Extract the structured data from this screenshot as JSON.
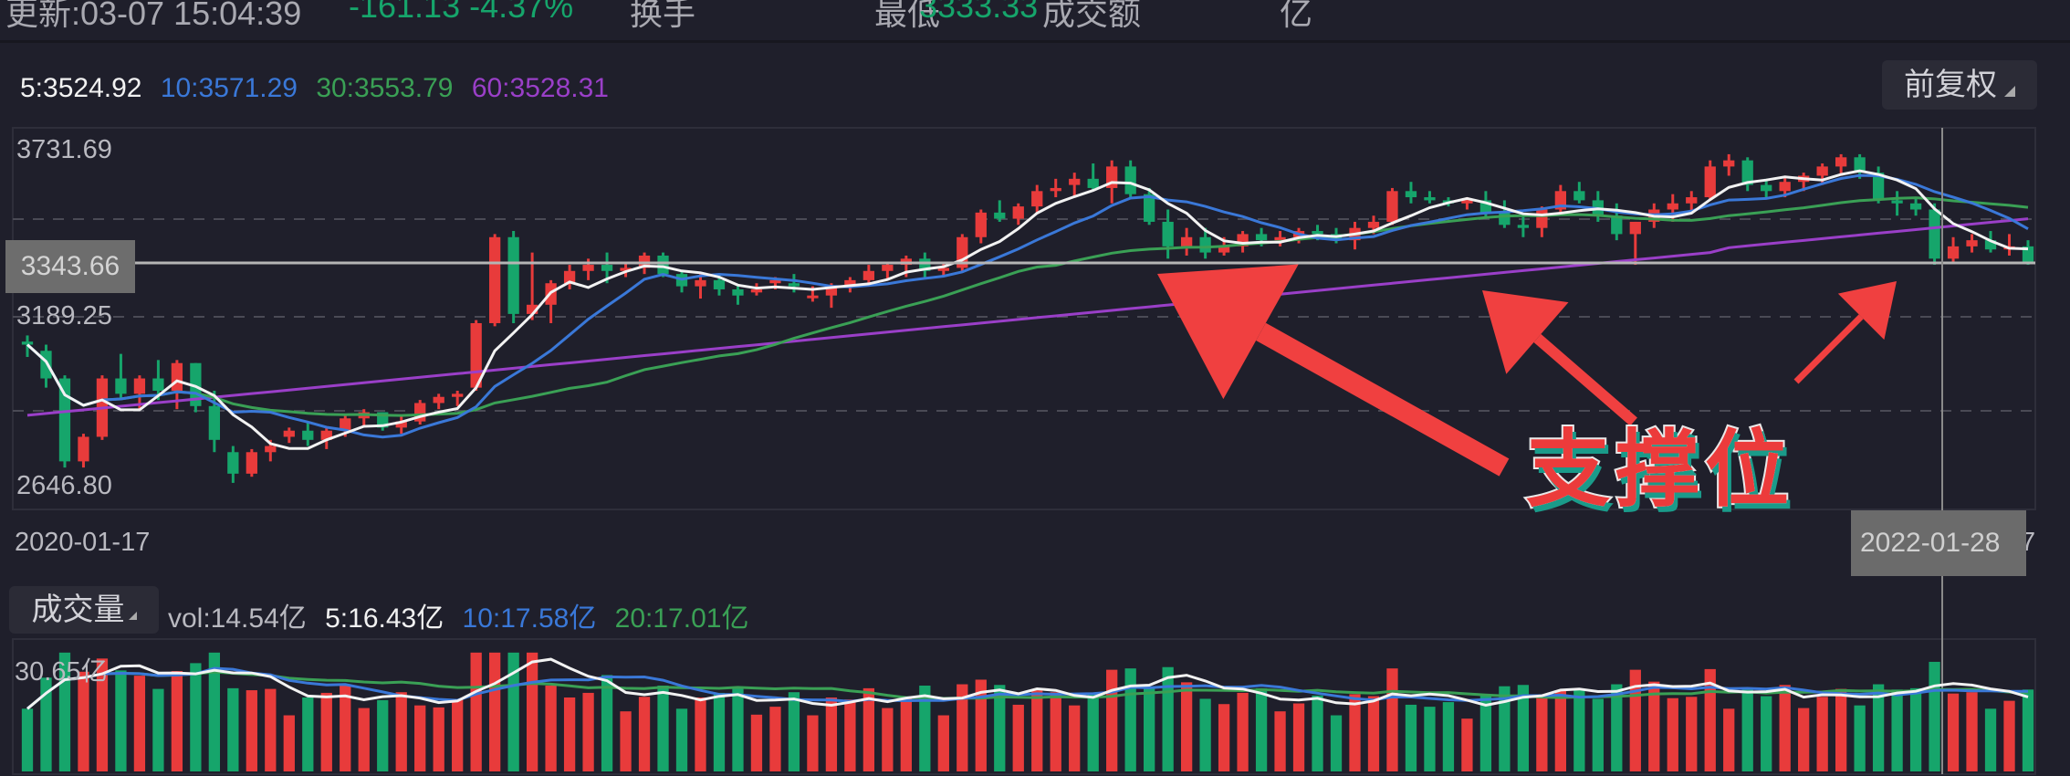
{
  "header": {
    "update_time": "更新:03-07 15:04:39",
    "change": "-161.13 -4.37%",
    "turnover_label": "换手",
    "low_label": "最低",
    "low_value": "3333.33",
    "amount_label": "成交额",
    "amount_value": "亿"
  },
  "ma_legend": {
    "ma5": "5:3524.92",
    "ma10": "10:3571.29",
    "ma30": "30:3553.79",
    "ma60": "60:3528.31"
  },
  "adjust_button": {
    "label": "前复权"
  },
  "price_axis": {
    "high": "3731.69",
    "crosshair": "3343.66",
    "mid": "3189.25",
    "low": "2646.80"
  },
  "date_axis": {
    "start": "2020-01-17",
    "crosshair": "2022-01-28",
    "end_partial": "7"
  },
  "volume": {
    "button_label": "成交量",
    "vol": "vol:14.54亿",
    "ma5": "5:16.43亿",
    "ma10": "10:17.58亿",
    "ma20": "20:17.01亿",
    "axis_max": "30.65亿"
  },
  "annotation": {
    "text": "支撑位"
  },
  "colors": {
    "background": "#1f1f2b",
    "up": "#e83b3b",
    "down": "#16a56b",
    "ma5": "#f2f2f2",
    "ma10": "#3a78d8",
    "ma30": "#3aa055",
    "ma60": "#9a3fc8",
    "arrow": "#f04040"
  },
  "chart_data": [
    {
      "type": "candlestick",
      "title": "K线 (前复权)",
      "xlabel": "",
      "ylabel": "",
      "x_range": [
        "2020-01-17",
        "2022-01-28"
      ],
      "ylim": [
        2646.8,
        3731.69
      ],
      "yticks": [
        2646.8,
        3189.25,
        3731.69
      ],
      "crosshair": {
        "price": 3343.66,
        "date": "2022-01-28"
      },
      "grid": "dashed horizontal",
      "series": [
        {
          "name": "MA5",
          "last": 3524.92
        },
        {
          "name": "MA10",
          "last": 3571.29
        },
        {
          "name": "MA30",
          "last": 3553.79
        },
        {
          "name": "MA60",
          "last": 3528.31
        }
      ],
      "candles": [
        [
          3110,
          3130,
          3060,
          3100
        ],
        [
          3080,
          3100,
          2960,
          2990
        ],
        [
          2990,
          3000,
          2700,
          2720
        ],
        [
          2720,
          2810,
          2700,
          2800
        ],
        [
          2800,
          3000,
          2790,
          2990
        ],
        [
          2990,
          3070,
          2920,
          2940
        ],
        [
          2940,
          3000,
          2890,
          2990
        ],
        [
          2990,
          3050,
          2920,
          2950
        ],
        [
          2950,
          3050,
          2890,
          3040
        ],
        [
          3040,
          3040,
          2880,
          2900
        ],
        [
          2900,
          2950,
          2750,
          2790
        ],
        [
          2750,
          2770,
          2650,
          2680
        ],
        [
          2680,
          2760,
          2670,
          2750
        ],
        [
          2750,
          2790,
          2720,
          2770
        ],
        [
          2800,
          2830,
          2780,
          2820
        ],
        [
          2820,
          2850,
          2770,
          2790
        ],
        [
          2790,
          2830,
          2760,
          2820
        ],
        [
          2820,
          2870,
          2800,
          2860
        ],
        [
          2860,
          2890,
          2830,
          2880
        ],
        [
          2880,
          2880,
          2820,
          2830
        ],
        [
          2830,
          2870,
          2810,
          2850
        ],
        [
          2850,
          2920,
          2840,
          2910
        ],
        [
          2910,
          2940,
          2890,
          2930
        ],
        [
          2930,
          2950,
          2900,
          2940
        ],
        [
          2960,
          3180,
          2950,
          3170
        ],
        [
          3170,
          3460,
          3160,
          3450
        ],
        [
          3450,
          3470,
          3170,
          3200
        ],
        [
          3200,
          3400,
          3180,
          3230
        ],
        [
          3230,
          3310,
          3170,
          3300
        ],
        [
          3300,
          3360,
          3280,
          3340
        ],
        [
          3340,
          3380,
          3310,
          3360
        ],
        [
          3360,
          3400,
          3300,
          3340
        ],
        [
          3340,
          3370,
          3320,
          3350
        ],
        [
          3350,
          3400,
          3330,
          3390
        ],
        [
          3390,
          3400,
          3320,
          3330
        ],
        [
          3330,
          3340,
          3270,
          3290
        ],
        [
          3290,
          3330,
          3250,
          3310
        ],
        [
          3310,
          3330,
          3260,
          3280
        ],
        [
          3280,
          3290,
          3230,
          3260
        ],
        [
          3270,
          3300,
          3260,
          3280
        ],
        [
          3300,
          3320,
          3280,
          3310
        ],
        [
          3300,
          3330,
          3270,
          3290
        ],
        [
          3260,
          3290,
          3240,
          3260
        ],
        [
          3260,
          3300,
          3220,
          3290
        ],
        [
          3290,
          3320,
          3270,
          3310
        ],
        [
          3310,
          3360,
          3300,
          3340
        ],
        [
          3340,
          3370,
          3310,
          3360
        ],
        [
          3360,
          3390,
          3320,
          3380
        ],
        [
          3380,
          3400,
          3320,
          3340
        ],
        [
          3340,
          3370,
          3320,
          3350
        ],
        [
          3350,
          3460,
          3340,
          3450
        ],
        [
          3450,
          3540,
          3430,
          3530
        ],
        [
          3530,
          3570,
          3500,
          3510
        ],
        [
          3510,
          3560,
          3490,
          3550
        ],
        [
          3550,
          3620,
          3530,
          3600
        ],
        [
          3600,
          3640,
          3580,
          3610
        ],
        [
          3620,
          3660,
          3580,
          3640
        ],
        [
          3640,
          3690,
          3600,
          3610
        ],
        [
          3610,
          3700,
          3560,
          3680
        ],
        [
          3680,
          3700,
          3580,
          3590
        ],
        [
          3590,
          3610,
          3490,
          3500
        ],
        [
          3500,
          3540,
          3380,
          3420
        ],
        [
          3420,
          3480,
          3390,
          3450
        ],
        [
          3450,
          3480,
          3380,
          3400
        ],
        [
          3400,
          3450,
          3390,
          3420
        ],
        [
          3420,
          3470,
          3400,
          3460
        ],
        [
          3460,
          3480,
          3420,
          3440
        ],
        [
          3440,
          3470,
          3420,
          3450
        ],
        [
          3450,
          3480,
          3430,
          3470
        ],
        [
          3470,
          3490,
          3440,
          3460
        ],
        [
          3460,
          3480,
          3430,
          3440
        ],
        [
          3440,
          3500,
          3410,
          3480
        ],
        [
          3480,
          3520,
          3460,
          3500
        ],
        [
          3500,
          3610,
          3490,
          3600
        ],
        [
          3600,
          3630,
          3560,
          3580
        ],
        [
          3580,
          3600,
          3560,
          3570
        ],
        [
          3570,
          3580,
          3550,
          3560
        ],
        [
          3560,
          3580,
          3540,
          3570
        ],
        [
          3570,
          3600,
          3510,
          3530
        ],
        [
          3530,
          3570,
          3480,
          3490
        ],
        [
          3490,
          3520,
          3450,
          3480
        ],
        [
          3480,
          3550,
          3450,
          3540
        ],
        [
          3540,
          3620,
          3530,
          3600
        ],
        [
          3600,
          3630,
          3560,
          3570
        ],
        [
          3570,
          3600,
          3500,
          3520
        ],
        [
          3520,
          3560,
          3440,
          3460
        ],
        [
          3460,
          3500,
          3360,
          3500
        ],
        [
          3500,
          3560,
          3480,
          3540
        ],
        [
          3540,
          3590,
          3500,
          3560
        ],
        [
          3560,
          3600,
          3530,
          3580
        ],
        [
          3580,
          3700,
          3570,
          3680
        ],
        [
          3680,
          3720,
          3650,
          3700
        ],
        [
          3700,
          3710,
          3600,
          3620
        ],
        [
          3620,
          3640,
          3580,
          3600
        ],
        [
          3600,
          3650,
          3580,
          3630
        ],
        [
          3630,
          3660,
          3600,
          3650
        ],
        [
          3650,
          3690,
          3620,
          3680
        ],
        [
          3680,
          3720,
          3650,
          3710
        ],
        [
          3710,
          3720,
          3640,
          3660
        ],
        [
          3660,
          3680,
          3560,
          3570
        ],
        [
          3570,
          3600,
          3520,
          3560
        ],
        [
          3560,
          3580,
          3520,
          3540
        ],
        [
          3540,
          3560,
          3360,
          3380
        ],
        [
          3380,
          3450,
          3370,
          3420
        ],
        [
          3420,
          3460,
          3400,
          3440
        ],
        [
          3440,
          3470,
          3400,
          3410
        ],
        [
          3410,
          3460,
          3390,
          3420
        ],
        [
          3420,
          3440,
          3360,
          3370
        ]
      ]
    },
    {
      "type": "bar",
      "title": "成交量",
      "ylabel": "亿",
      "ylim": [
        0,
        30.65
      ],
      "series": [
        {
          "name": "vol",
          "last": 14.54
        },
        {
          "name": "MA5",
          "last": 16.43
        },
        {
          "name": "MA10",
          "last": 17.58
        },
        {
          "name": "MA20",
          "last": 17.01
        }
      ]
    }
  ]
}
